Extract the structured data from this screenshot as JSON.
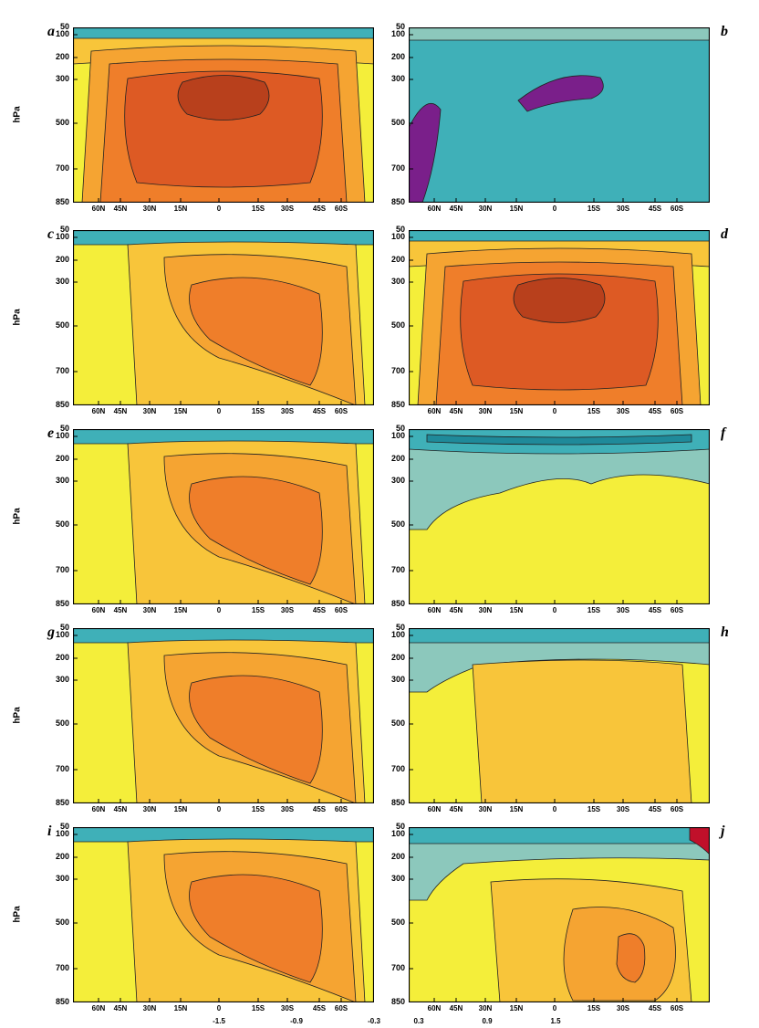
{
  "figure": {
    "y_axis_title": "hPa",
    "y_ticks": [
      "50",
      "100",
      "200",
      "300",
      "500",
      "700",
      "850"
    ],
    "x_ticks": [
      "60N",
      "45N",
      "30N",
      "15N",
      "0",
      "15S",
      "30S",
      "45S",
      "60S"
    ],
    "colorbar_labels_left": [
      "-1.5",
      "-0.9",
      "-0.3"
    ],
    "colorbar_labels_right": [
      "0.3",
      "0.9",
      "1.5"
    ],
    "colors": {
      "purple": "#7a1f8a",
      "teal_dark": "#1f8a9a",
      "teal": "#3fb0b8",
      "teal_light": "#8cc8bc",
      "yellow": "#f4ee3a",
      "yellow_orange": "#f8c53a",
      "orange_light": "#f5a432",
      "orange": "#ef7e2a",
      "red_orange": "#dd5a24",
      "red_brown": "#b8401c",
      "crimson": "#c0102a"
    }
  },
  "panels": [
    {
      "label": "a",
      "scheme": "warm_core"
    },
    {
      "label": "b",
      "scheme": "cool"
    },
    {
      "label": "c",
      "scheme": "moderate"
    },
    {
      "label": "d",
      "scheme": "warm_core"
    },
    {
      "label": "e",
      "scheme": "moderate"
    },
    {
      "label": "f",
      "scheme": "yellow_top_teal"
    },
    {
      "label": "g",
      "scheme": "moderate"
    },
    {
      "label": "h",
      "scheme": "yellow_orange"
    },
    {
      "label": "i",
      "scheme": "moderate"
    },
    {
      "label": "j",
      "scheme": "yellow_orange_spot"
    }
  ]
}
